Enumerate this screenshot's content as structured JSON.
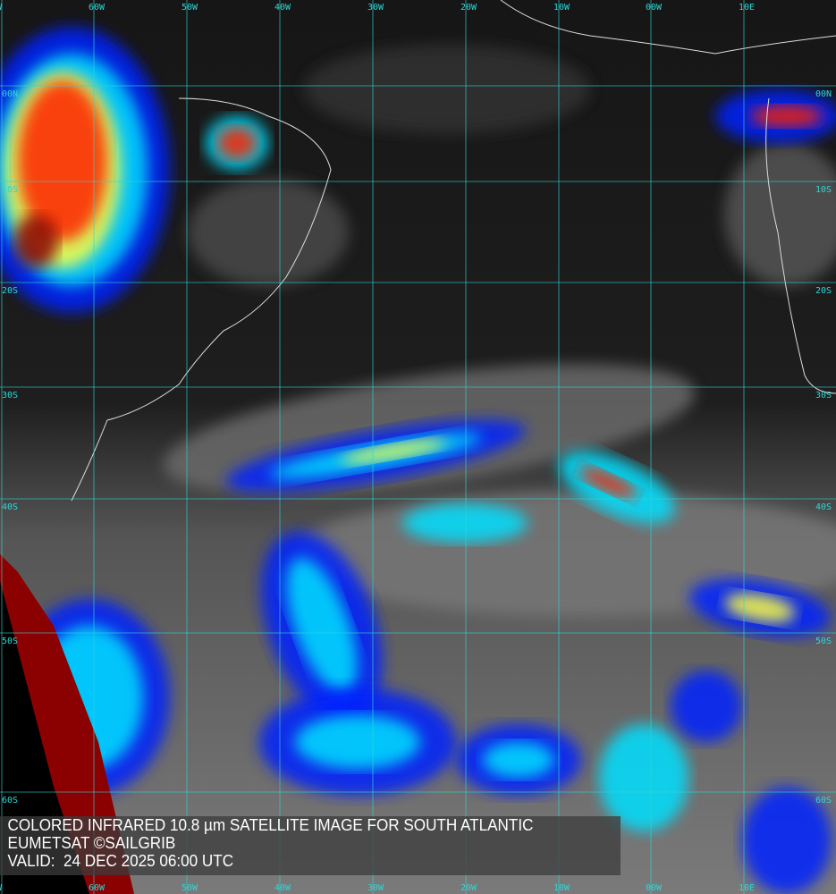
{
  "caption": {
    "line1": "COLORED INFRARED 10.8 µm SATELLITE IMAGE FOR SOUTH ATLANTIC",
    "line2": "EUMETSAT ©SAILGRIB",
    "line3": "VALID:  24 DEC 2025 06:00 UTC"
  },
  "grid": {
    "longitudes": [
      "W",
      "60W",
      "50W",
      "40W",
      "30W",
      "20W",
      "10W",
      "00W",
      "10E"
    ],
    "latitudes": [
      "00N",
      "10S",
      "20S",
      "30S",
      "40S",
      "50S",
      "60S"
    ],
    "color": "#2fd6d6"
  },
  "palette": {
    "cold_top": "#8b0000",
    "red": "#ff2000",
    "yellow": "#ffff40",
    "cyan": "#00e0ff",
    "blue": "#0020ff",
    "ocean": "#1c1c1c",
    "cloud_grey": "#808080"
  }
}
